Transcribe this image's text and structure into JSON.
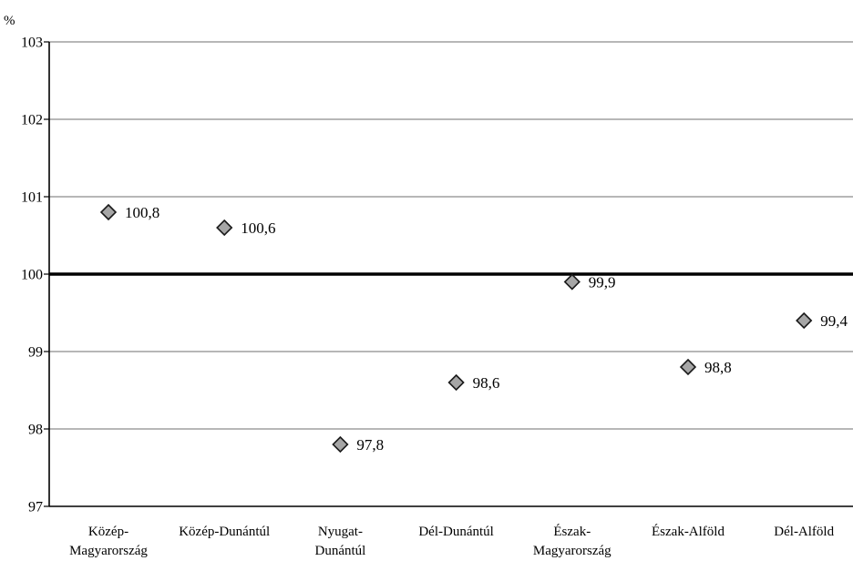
{
  "chart_data": {
    "type": "scatter",
    "title": "",
    "xlabel": "",
    "ylabel": "%",
    "ylim": [
      97,
      103
    ],
    "yticks": [
      97,
      98,
      99,
      100,
      101,
      102,
      103
    ],
    "ytick_labels": [
      "97",
      "98",
      "99",
      "100",
      "101",
      "102",
      "103"
    ],
    "reference_line": 100,
    "grid": true,
    "marker": "diamond",
    "categories": [
      [
        "Közép-",
        "Magyarország"
      ],
      [
        "Közép-Dunántúl"
      ],
      [
        "Nyugat-",
        "Dunántúl"
      ],
      [
        "Dél-Dunántúl"
      ],
      [
        "Észak-",
        "Magyarország"
      ],
      [
        "Észak-Alföld"
      ],
      [
        "Dél-Alföld"
      ]
    ],
    "values": [
      100.8,
      100.6,
      97.8,
      98.6,
      99.9,
      98.8,
      99.4
    ],
    "data_labels": [
      "100,8",
      "100,6",
      "97,8",
      "98,6",
      "99,9",
      "98,8",
      "99,4"
    ],
    "colors": {
      "marker_fill": "#a6a6a6",
      "marker_stroke": "#1a1a1a",
      "grid": "#8c8c8c",
      "axis": "#000000",
      "reference_line": "#000000"
    }
  }
}
